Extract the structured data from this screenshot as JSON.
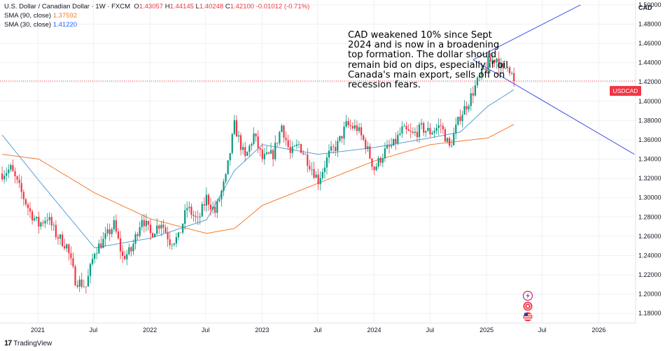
{
  "legend": {
    "symbol_line": "U.S. Dollar / Canadian Dollar · 1W · FXCM",
    "o_label": "O",
    "o_value": "1.43057",
    "h_label": "H",
    "h_value": "1.44145",
    "l_label": "L",
    "l_value": "1.40248",
    "c_label": "C",
    "c_value": "1.42100",
    "change": "-0.01012 (-0.71%)",
    "sma90_label": "SMA (90, close)",
    "sma90_value": "1.37592",
    "sma30_label": "SMA (30, close)",
    "sma30_value": "1.41220"
  },
  "annotation": "CAD weakened 10% since Sept 2024 and is now in a broadening top formation. The dollar should remain bid on dips, especially if oil Canada's main export, sells off on recession fears.",
  "axis_currency": "CAD",
  "price_tag": {
    "symbol": "USDCAD",
    "value": "1.42100"
  },
  "watermark": "TradingView",
  "colors": {
    "up": "#089981",
    "down": "#f23645",
    "sma90": "#f57c2b",
    "sma30": "#5a9fd4",
    "trendline": "#2b3de6",
    "grid": "#eef0f3",
    "price_line": "#f23645"
  },
  "icons": [
    "lightning-icon",
    "broadcast-icon",
    "us-flag-icon"
  ],
  "chart_data": {
    "type": "candlestick",
    "symbol": "USDCAD",
    "interval": "1W",
    "ylim": [
      1.17,
      1.505
    ],
    "yticks": [
      1.18,
      1.2,
      1.22,
      1.24,
      1.26,
      1.28,
      1.3,
      1.32,
      1.34,
      1.36,
      1.38,
      1.4,
      1.42,
      1.44,
      1.46,
      1.48,
      1.5
    ],
    "ytick_labels": [
      "1.18000",
      "1.20000",
      "1.22000",
      "1.24000",
      "1.26000",
      "1.28000",
      "1.30000",
      "1.32000",
      "1.34000",
      "1.36000",
      "1.38000",
      "1.40000",
      "1.42000",
      "1.44000",
      "1.46000",
      "1.48000",
      "1.50000"
    ],
    "xlim": [
      "2020-08-31",
      "2026-05-01"
    ],
    "xticks": [
      "2021-01-01",
      "2021-07-01",
      "2022-01-01",
      "2022-07-01",
      "2023-01-01",
      "2023-07-01",
      "2024-01-01",
      "2024-07-01",
      "2025-01-01",
      "2025-07-01",
      "2026-01-01"
    ],
    "xtick_labels": [
      "2021",
      "Jul",
      "2022",
      "Jul",
      "2023",
      "Jul",
      "2024",
      "Jul",
      "2025",
      "Jul",
      "2026"
    ],
    "last_close": 1.421,
    "price_path": [
      [
        "2020-09-07",
        1.325
      ],
      [
        "2020-10-05",
        1.33
      ],
      [
        "2020-11-02",
        1.31
      ],
      [
        "2020-12-07",
        1.285
      ],
      [
        "2021-01-04",
        1.272
      ],
      [
        "2021-02-01",
        1.28
      ],
      [
        "2021-03-01",
        1.262
      ],
      [
        "2021-04-05",
        1.25
      ],
      [
        "2021-05-03",
        1.215
      ],
      [
        "2021-06-07",
        1.208
      ],
      [
        "2021-07-05",
        1.245
      ],
      [
        "2021-08-02",
        1.255
      ],
      [
        "2021-09-06",
        1.272
      ],
      [
        "2021-10-04",
        1.238
      ],
      [
        "2021-11-01",
        1.245
      ],
      [
        "2021-12-06",
        1.28
      ],
      [
        "2022-01-03",
        1.262
      ],
      [
        "2022-02-07",
        1.275
      ],
      [
        "2022-03-07",
        1.255
      ],
      [
        "2022-04-04",
        1.258
      ],
      [
        "2022-05-02",
        1.29
      ],
      [
        "2022-06-06",
        1.275
      ],
      [
        "2022-07-04",
        1.3
      ],
      [
        "2022-08-01",
        1.285
      ],
      [
        "2022-09-05",
        1.32
      ],
      [
        "2022-10-03",
        1.375
      ],
      [
        "2022-11-07",
        1.34
      ],
      [
        "2022-12-05",
        1.365
      ],
      [
        "2023-01-02",
        1.34
      ],
      [
        "2023-02-06",
        1.345
      ],
      [
        "2023-03-06",
        1.375
      ],
      [
        "2023-04-03",
        1.345
      ],
      [
        "2023-05-01",
        1.355
      ],
      [
        "2023-06-05",
        1.335
      ],
      [
        "2023-07-03",
        1.318
      ],
      [
        "2023-08-07",
        1.345
      ],
      [
        "2023-09-04",
        1.355
      ],
      [
        "2023-10-02",
        1.375
      ],
      [
        "2023-11-06",
        1.372
      ],
      [
        "2023-12-04",
        1.355
      ],
      [
        "2024-01-01",
        1.33
      ],
      [
        "2024-02-05",
        1.348
      ],
      [
        "2024-03-04",
        1.355
      ],
      [
        "2024-04-01",
        1.37
      ],
      [
        "2024-05-06",
        1.365
      ],
      [
        "2024-06-03",
        1.372
      ],
      [
        "2024-07-01",
        1.368
      ],
      [
        "2024-08-05",
        1.375
      ],
      [
        "2024-09-02",
        1.352
      ],
      [
        "2024-10-07",
        1.385
      ],
      [
        "2024-11-04",
        1.4
      ],
      [
        "2024-12-02",
        1.42
      ],
      [
        "2025-01-06",
        1.44
      ],
      [
        "2025-02-03",
        1.445
      ],
      [
        "2025-02-24",
        1.43
      ],
      [
        "2025-03-10",
        1.44
      ],
      [
        "2025-03-31",
        1.421
      ]
    ],
    "sma90": [
      [
        "2020-09-07",
        1.345
      ],
      [
        "2021-01-04",
        1.34
      ],
      [
        "2021-07-05",
        1.305
      ],
      [
        "2022-01-03",
        1.278
      ],
      [
        "2022-07-04",
        1.263
      ],
      [
        "2022-10-03",
        1.268
      ],
      [
        "2023-01-02",
        1.292
      ],
      [
        "2023-07-03",
        1.315
      ],
      [
        "2024-01-01",
        1.338
      ],
      [
        "2024-07-01",
        1.355
      ],
      [
        "2025-01-06",
        1.362
      ],
      [
        "2025-03-31",
        1.376
      ]
    ],
    "sma30": [
      [
        "2020-09-07",
        1.365
      ],
      [
        "2021-01-04",
        1.318
      ],
      [
        "2021-07-05",
        1.248
      ],
      [
        "2022-01-03",
        1.258
      ],
      [
        "2022-07-04",
        1.277
      ],
      [
        "2022-10-03",
        1.328
      ],
      [
        "2023-01-02",
        1.355
      ],
      [
        "2023-07-03",
        1.345
      ],
      [
        "2024-01-01",
        1.352
      ],
      [
        "2024-07-01",
        1.362
      ],
      [
        "2024-10-07",
        1.368
      ],
      [
        "2025-01-06",
        1.395
      ],
      [
        "2025-03-31",
        1.412
      ]
    ],
    "trendlines": [
      {
        "from": [
          "2024-11-18",
          1.443
        ],
        "to": [
          "2025-11-03",
          1.5
        ]
      },
      {
        "from": [
          "2024-11-18",
          1.443
        ],
        "to": [
          "2026-04-27",
          1.345
        ]
      }
    ]
  }
}
